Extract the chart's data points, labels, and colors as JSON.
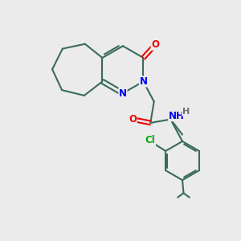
{
  "bg_color": "#ebebeb",
  "atom_colors": {
    "C": "#3a6b5a",
    "N": "#0000ee",
    "O": "#ee0000",
    "Cl": "#00aa00",
    "H": "#707070"
  },
  "bond_color": "#3a6b5a",
  "bond_width": 1.5,
  "font_size_atom": 8.5,
  "figsize": [
    3.0,
    3.0
  ],
  "dpi": 100
}
